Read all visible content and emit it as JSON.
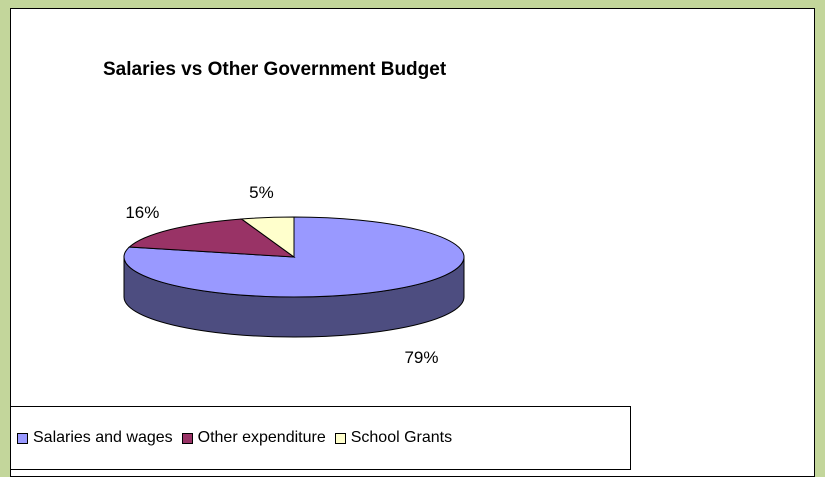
{
  "chart_data": {
    "type": "pie",
    "title": "Salaries vs Other Government Budget",
    "slices": [
      {
        "name": "Salaries and wages",
        "value": 79,
        "label": "79%",
        "color": "#9999ff",
        "side_color": "#4d4d80"
      },
      {
        "name": "Other expenditure",
        "value": 16,
        "label": "16%",
        "color": "#993366",
        "side_color": "#4d1a33"
      },
      {
        "name": "School Grants",
        "value": 5,
        "label": "5%",
        "color": "#ffffcc",
        "side_color": "#80806a"
      }
    ],
    "three_d": true,
    "legend_position": "bottom"
  }
}
